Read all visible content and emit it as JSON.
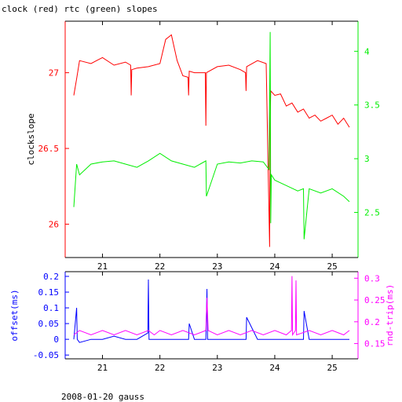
{
  "title": "clock (red) rtc (green) slopes",
  "footer": "2008-01-20 gauss",
  "colors": {
    "clock": "#ff0000",
    "rtc": "#00ee00",
    "offset": "#0000ff",
    "rndtrip": "#ff00ff",
    "axis": "#000000"
  },
  "chart_data": [
    {
      "type": "line",
      "title": "clock (red) rtc (green) slopes",
      "xlabel": "",
      "ylabel": "clockslope",
      "y2label": "",
      "xlim": [
        20.35,
        25.45
      ],
      "ylim": [
        25.78,
        27.34
      ],
      "y2lim": [
        2.08,
        4.28
      ],
      "xticks": [
        21,
        22,
        23,
        24,
        25
      ],
      "yticks": [
        26,
        26.5,
        27
      ],
      "y2ticks": [
        2.5,
        3,
        3.5,
        4
      ],
      "ytick_labels": [
        "26",
        "26.5",
        "27"
      ],
      "y2tick_labels": [
        "2.5",
        "3",
        "3.5",
        "4"
      ],
      "series": [
        {
          "name": "clock",
          "color": "#ff0000",
          "axis": "left",
          "x": [
            20.5,
            20.55,
            20.6,
            20.8,
            21.0,
            21.2,
            21.4,
            21.49,
            21.5,
            21.51,
            21.6,
            21.8,
            22.0,
            22.1,
            22.2,
            22.3,
            22.4,
            22.49,
            22.5,
            22.51,
            22.6,
            22.79,
            22.8,
            22.81,
            23.0,
            23.2,
            23.4,
            23.49,
            23.5,
            23.51,
            23.7,
            23.85,
            23.91,
            23.92,
            23.93,
            24.0,
            24.1,
            24.2,
            24.3,
            24.4,
            24.5,
            24.6,
            24.7,
            24.8,
            24.9,
            25.0,
            25.1,
            25.2,
            25.3
          ],
          "y": [
            26.85,
            26.96,
            27.08,
            27.06,
            27.1,
            27.05,
            27.07,
            27.05,
            26.85,
            27.02,
            27.03,
            27.04,
            27.06,
            27.22,
            27.25,
            27.08,
            26.98,
            26.97,
            26.85,
            27.01,
            27.0,
            27.0,
            26.65,
            27.0,
            27.04,
            27.05,
            27.02,
            27.0,
            26.88,
            27.04,
            27.08,
            27.06,
            25.85,
            26.7,
            26.88,
            26.85,
            26.86,
            26.78,
            26.8,
            26.74,
            26.76,
            26.7,
            26.72,
            26.68,
            26.7,
            26.72,
            26.66,
            26.7,
            26.64
          ]
        },
        {
          "name": "rtc",
          "color": "#00ee00",
          "axis": "right",
          "x": [
            20.5,
            20.55,
            20.6,
            20.8,
            21.0,
            21.2,
            21.4,
            21.6,
            21.8,
            22.0,
            22.2,
            22.4,
            22.6,
            22.8,
            22.81,
            23.0,
            23.2,
            23.4,
            23.6,
            23.8,
            23.9,
            23.92,
            23.93,
            23.94,
            24.0,
            24.2,
            24.4,
            24.5,
            24.51,
            24.6,
            24.8,
            25.0,
            25.2,
            25.3
          ],
          "y": [
            2.55,
            2.95,
            2.85,
            2.95,
            2.97,
            2.98,
            2.95,
            2.92,
            2.98,
            3.05,
            2.98,
            2.95,
            2.92,
            2.98,
            2.65,
            2.95,
            2.97,
            2.96,
            2.98,
            2.97,
            2.9,
            4.18,
            2.4,
            2.85,
            2.8,
            2.75,
            2.7,
            2.72,
            2.25,
            2.72,
            2.68,
            2.72,
            2.65,
            2.6
          ]
        }
      ]
    },
    {
      "type": "line",
      "title": "",
      "xlabel": "",
      "ylabel": "offset(ms)",
      "y2label": "rnd-trip(ms)",
      "xlim": [
        20.35,
        25.45
      ],
      "ylim": [
        -0.062,
        0.215
      ],
      "y2lim": [
        0.115,
        0.315
      ],
      "xticks": [
        21,
        22,
        23,
        24,
        25
      ],
      "yticks": [
        -0.05,
        0,
        0.05,
        0.1,
        0.15,
        0.2
      ],
      "y2ticks": [
        0.15,
        0.2,
        0.25,
        0.3
      ],
      "ytick_labels": [
        "-0.05",
        "0",
        "0.05",
        "0.1",
        "0.15",
        "0.2"
      ],
      "y2tick_labels": [
        "0.15",
        "0.2",
        "0.25",
        "0.3"
      ],
      "series": [
        {
          "name": "offset",
          "color": "#0000ff",
          "axis": "left",
          "x": [
            20.5,
            20.55,
            20.56,
            20.6,
            20.8,
            21.0,
            21.2,
            21.4,
            21.6,
            21.79,
            21.8,
            21.81,
            22.0,
            22.2,
            22.4,
            22.5,
            22.51,
            22.6,
            22.8,
            22.82,
            22.83,
            23.0,
            23.2,
            23.4,
            23.5,
            23.51,
            23.7,
            23.9,
            24.0,
            24.2,
            24.4,
            24.5,
            24.51,
            24.6,
            24.8,
            25.0,
            25.2,
            25.3
          ],
          "y": [
            0.0,
            0.1,
            0.0,
            -0.01,
            0.0,
            0.0,
            0.01,
            0.0,
            0.0,
            0.02,
            0.19,
            0.0,
            0.0,
            0.0,
            0.0,
            0.0,
            0.05,
            0.0,
            0.0,
            0.16,
            0.0,
            0.0,
            0.0,
            0.0,
            0.0,
            0.07,
            0.0,
            0.0,
            0.0,
            0.0,
            0.0,
            0.0,
            0.09,
            0.0,
            0.0,
            0.0,
            0.0,
            0.0
          ]
        },
        {
          "name": "rnd-trip",
          "color": "#ff00ff",
          "axis": "right",
          "x": [
            20.5,
            20.6,
            20.8,
            21.0,
            21.2,
            21.4,
            21.6,
            21.8,
            21.9,
            22.0,
            22.2,
            22.4,
            22.6,
            22.8,
            22.82,
            22.84,
            23.0,
            23.2,
            23.4,
            23.6,
            23.8,
            24.0,
            24.2,
            24.29,
            24.3,
            24.31,
            24.36,
            24.37,
            24.38,
            24.6,
            24.8,
            25.0,
            25.2,
            25.3
          ],
          "y": [
            0.17,
            0.18,
            0.17,
            0.18,
            0.17,
            0.18,
            0.17,
            0.18,
            0.17,
            0.18,
            0.17,
            0.18,
            0.17,
            0.18,
            0.255,
            0.18,
            0.17,
            0.18,
            0.17,
            0.18,
            0.17,
            0.18,
            0.17,
            0.18,
            0.305,
            0.17,
            0.18,
            0.295,
            0.17,
            0.18,
            0.17,
            0.18,
            0.17,
            0.18
          ]
        }
      ]
    }
  ]
}
